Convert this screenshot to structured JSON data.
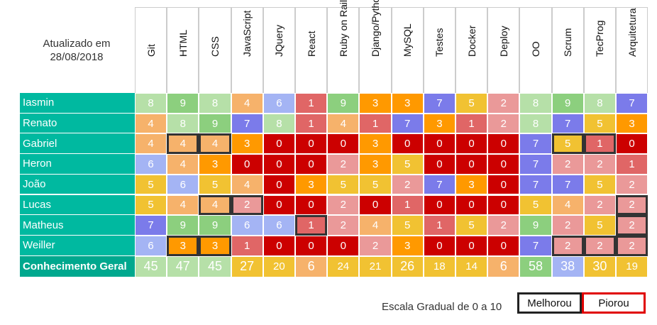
{
  "updated": {
    "line1": "Atualizado em",
    "line2": "28/08/2018"
  },
  "columns": [
    "Git",
    "HTML",
    "CSS",
    "JavaScript",
    "JQuery",
    "React",
    "Ruby on Rails",
    "Django/Python",
    "MySQL",
    "Testes",
    "Docker",
    "Deploy",
    "OO",
    "Scrum",
    "TecProg",
    "Arquitetura"
  ],
  "rows": [
    {
      "name": "Iasmin",
      "values": [
        8,
        9,
        8,
        4,
        6,
        1,
        9,
        3,
        3,
        7,
        5,
        2,
        8,
        9,
        8,
        7
      ],
      "marks": []
    },
    {
      "name": "Renato",
      "values": [
        4,
        8,
        9,
        7,
        8,
        1,
        4,
        1,
        7,
        3,
        1,
        2,
        8,
        7,
        5,
        3
      ],
      "marks": []
    },
    {
      "name": "Gabriel",
      "values": [
        4,
        4,
        4,
        3,
        0,
        0,
        0,
        3,
        0,
        0,
        0,
        0,
        7,
        5,
        1,
        0
      ],
      "marks": [
        1,
        2,
        13,
        14
      ]
    },
    {
      "name": "Heron",
      "values": [
        6,
        4,
        3,
        0,
        0,
        0,
        2,
        3,
        5,
        0,
        0,
        0,
        7,
        2,
        2,
        1
      ],
      "marks": []
    },
    {
      "name": "João",
      "values": [
        5,
        6,
        5,
        4,
        0,
        3,
        5,
        5,
        2,
        7,
        3,
        0,
        7,
        7,
        5,
        2
      ],
      "marks": []
    },
    {
      "name": "Lucas",
      "values": [
        5,
        4,
        4,
        2,
        0,
        0,
        2,
        0,
        1,
        0,
        0,
        0,
        5,
        4,
        2,
        2
      ],
      "marks": [
        2,
        3,
        15
      ]
    },
    {
      "name": "Matheus",
      "values": [
        7,
        9,
        9,
        6,
        6,
        1,
        2,
        4,
        5,
        1,
        5,
        2,
        9,
        2,
        5,
        2
      ],
      "marks": [
        5,
        15
      ]
    },
    {
      "name": "Weiller",
      "values": [
        6,
        3,
        3,
        1,
        0,
        0,
        0,
        2,
        3,
        0,
        0,
        0,
        7,
        2,
        2,
        2
      ],
      "marks": [
        1,
        2,
        13,
        14,
        15
      ]
    }
  ],
  "totals": {
    "label": "Conhecimento Geral",
    "values": [
      45,
      47,
      45,
      27,
      20,
      6,
      24,
      21,
      26,
      18,
      14,
      6,
      58,
      38,
      30,
      19
    ]
  },
  "legend": {
    "scale": "Escala Gradual de 0 a 10",
    "better": "Melhorou",
    "worse": "Piorou"
  },
  "palette": {
    "0": "#cc0000",
    "1": "#e06666",
    "2": "#ea9999",
    "3": "#ff9900",
    "4": "#f6b26b",
    "5": "#f1c232",
    "6": "#a4b4f4",
    "7": "#7b7bea",
    "8": "#b6e0a8",
    "9": "#8ccf7e",
    "name_bg": "#00b9a0",
    "total_name_bg": "#00a88e"
  }
}
